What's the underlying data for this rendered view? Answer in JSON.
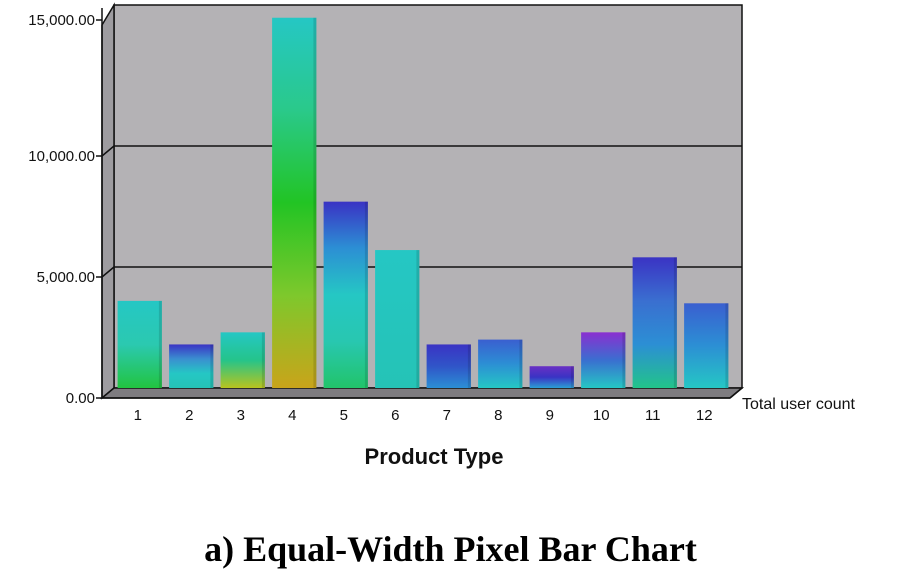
{
  "caption": "a) Equal-Width Pixel Bar Chart",
  "chart_data": {
    "type": "bar",
    "title": "",
    "xlabel": "Product Type",
    "ylabel": "",
    "series_label": "Total user count",
    "categories": [
      "1",
      "2",
      "3",
      "4",
      "5",
      "6",
      "7",
      "8",
      "9",
      "10",
      "11",
      "12"
    ],
    "values": [
      3600,
      1800,
      2300,
      15300,
      7700,
      5700,
      1800,
      2000,
      900,
      2300,
      5400,
      3500
    ],
    "ylim": [
      0,
      15000
    ],
    "yticks": [
      0,
      5000,
      10000,
      15000
    ],
    "ytick_labels": [
      "0.00",
      "5,000.00",
      "10,000.00",
      "15,000.00"
    ],
    "grid": true,
    "plot_background": "#b4b2b5",
    "bar_gradients": [
      [
        "#22c440",
        "#2bc9b0",
        "#25c7c4"
      ],
      [
        "#25c3b6",
        "#25c7c4",
        "#3a8fd0",
        "#3a33c4"
      ],
      [
        "#b8c41e",
        "#25c48a",
        "#25c7c4"
      ],
      [
        "#c9a41a",
        "#7ec82c",
        "#22c424",
        "#2ac98a",
        "#25c7c4"
      ],
      [
        "#22c46a",
        "#28c7b0",
        "#25c7c4",
        "#2c8fd4",
        "#3a33c4"
      ],
      [
        "#25c3b6",
        "#25c7c4"
      ],
      [
        "#2b8fd4",
        "#3055c8",
        "#3a33c4"
      ],
      [
        "#25c7c4",
        "#2c8fd4",
        "#3a5fd0"
      ],
      [
        "#2b9fd4",
        "#3a33c4",
        "#6a30c4"
      ],
      [
        "#25c7c4",
        "#3a6fd0",
        "#8a2fd0"
      ],
      [
        "#22c48a",
        "#2c8fd4",
        "#3a6fd0",
        "#3a33c4"
      ],
      [
        "#25c7c4",
        "#2c8fd4",
        "#3a5fd0"
      ]
    ]
  }
}
